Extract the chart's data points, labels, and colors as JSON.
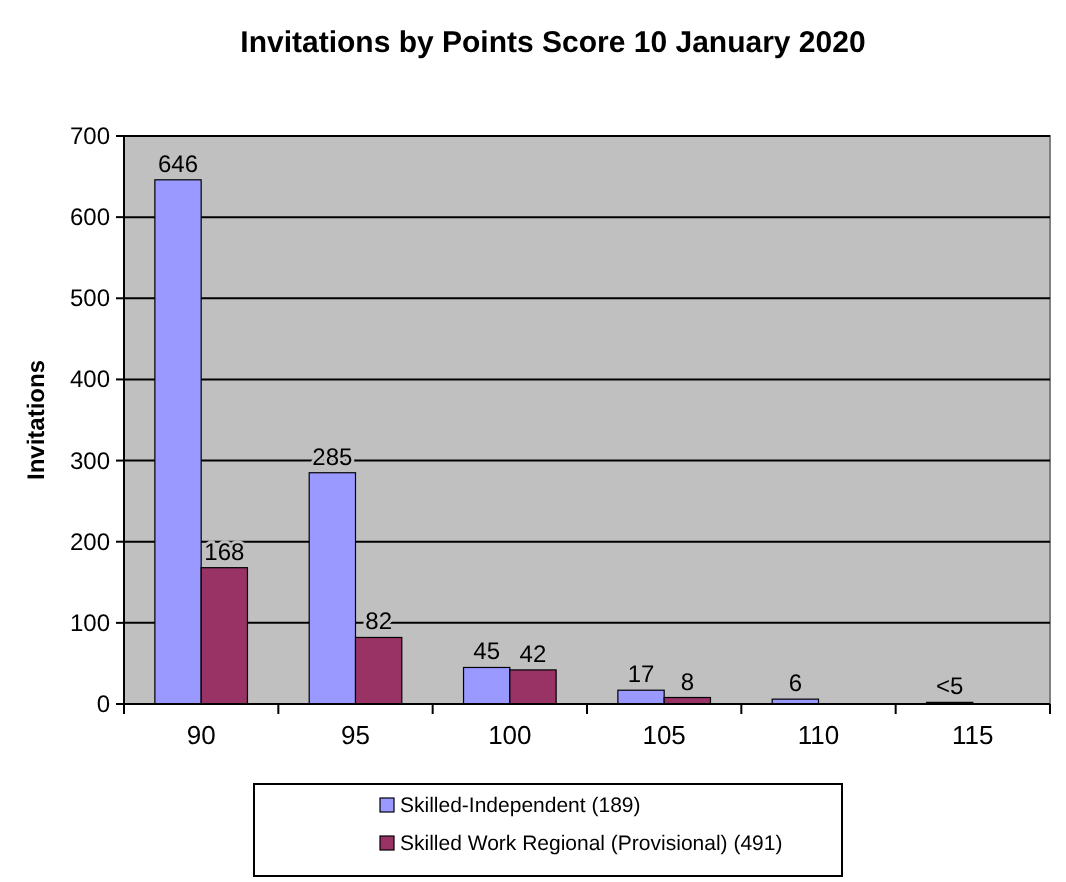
{
  "chart_data": {
    "type": "bar",
    "title": "Invitations by Points Score 10 January 2020",
    "ylabel": "Invitations",
    "categories": [
      "90",
      "95",
      "100",
      "105",
      "110",
      "115"
    ],
    "series": [
      {
        "name": "Skilled-Independent (189)",
        "color": "#9999ff",
        "values": [
          646,
          285,
          45,
          17,
          6,
          2
        ],
        "value_labels": [
          "646",
          "285",
          "45",
          "17",
          "6",
          "<5"
        ]
      },
      {
        "name": "Skilled Work Regional (Provisional) (491)",
        "color": "#993366",
        "values": [
          168,
          82,
          42,
          8,
          null,
          null
        ],
        "value_labels": [
          "168",
          "82",
          "42",
          "8",
          null,
          null
        ]
      }
    ],
    "ylim": [
      0,
      700
    ],
    "yticks": [
      0,
      100,
      200,
      300,
      400,
      500,
      600,
      700
    ],
    "grid": "y",
    "legend": "bottom"
  }
}
